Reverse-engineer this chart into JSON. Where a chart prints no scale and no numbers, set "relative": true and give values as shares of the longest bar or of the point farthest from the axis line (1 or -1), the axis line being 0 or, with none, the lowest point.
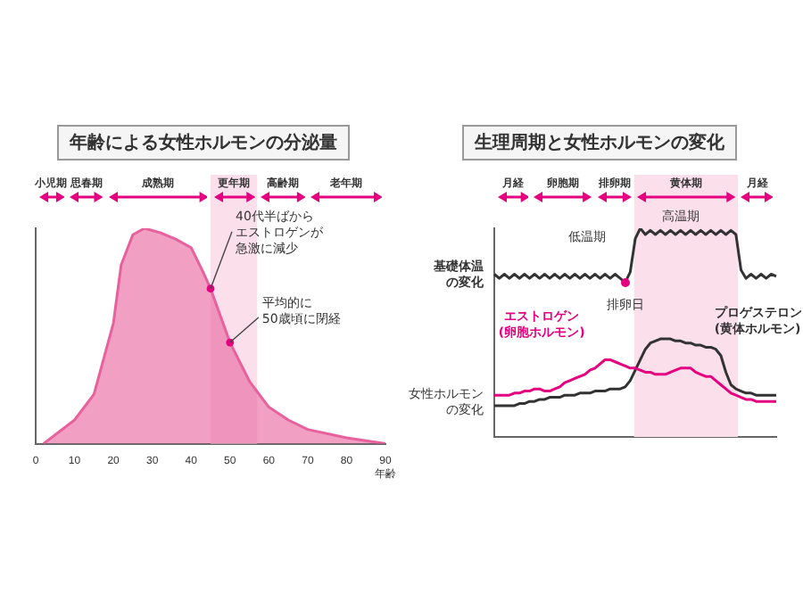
{
  "chart_data": [
    {
      "type": "area",
      "title": "年齢による女性ホルモンの分泌量",
      "xlabel": "年齢",
      "relative": true,
      "tick_labels": "x",
      "color": "#e8609c",
      "x": [
        2,
        10,
        15,
        20,
        22,
        25,
        28,
        32,
        36,
        40,
        43,
        45,
        50,
        55,
        60,
        65,
        70,
        80,
        90
      ],
      "values": [
        0,
        0.11,
        0.23,
        0.56,
        0.83,
        0.97,
        1,
        0.98,
        0.95,
        0.91,
        0.8,
        0.72,
        0.47,
        0.29,
        0.17,
        0.11,
        0.066,
        0.027,
        0
      ],
      "xlim": [
        0,
        90
      ],
      "xticks": [
        0,
        10,
        20,
        30,
        40,
        50,
        60,
        70,
        80,
        90
      ],
      "bands": [
        {
          "axis": "x",
          "from": 45,
          "to": 57,
          "label": "更年期",
          "color": "#fbe0ec"
        }
      ],
      "annotations": [
        "小児期",
        "思春期",
        "成熟期",
        "高齢期",
        "老年期",
        {
          "text": "40代半ばからエストロゲンが急激に減少",
          "x": 45,
          "y": 0.72
        },
        {
          "text": "平均的に50歳頃に閉経",
          "x": 50,
          "y": 0.47
        }
      ]
    },
    {
      "type": "line",
      "title": "生理周期と女性ホルモンの変化",
      "relative": true,
      "tick_labels": false,
      "categories": [
        null,
        null,
        null,
        null,
        null,
        null,
        null,
        null,
        null,
        null,
        null,
        null,
        null,
        null,
        null,
        null,
        null,
        null,
        null,
        null,
        null,
        null,
        null,
        null,
        null,
        null,
        null,
        null,
        null,
        null,
        null,
        null,
        null,
        null,
        null,
        null,
        null,
        null,
        null,
        null,
        null,
        null,
        null,
        null,
        null,
        null,
        null,
        null,
        null,
        null,
        null,
        null,
        null,
        null,
        null,
        null,
        null
      ],
      "series": [
        {
          "name": "基礎体温の変化",
          "color": "#333333",
          "values": [
            0.78,
            0.76,
            0.78,
            0.76,
            0.78,
            0.76,
            0.78,
            0.76,
            0.78,
            0.76,
            0.78,
            0.76,
            0.78,
            0.76,
            0.78,
            0.76,
            0.78,
            0.76,
            0.78,
            0.76,
            0.78,
            0.76,
            0.78,
            0.76,
            0.78,
            0.76,
            0.74,
            0.79,
            0.95,
            1,
            0.97,
            0.99,
            0.97,
            0.99,
            0.97,
            0.99,
            0.97,
            0.99,
            0.97,
            0.99,
            0.97,
            0.99,
            0.97,
            0.99,
            0.97,
            0.99,
            0.97,
            0.99,
            0.97,
            0.8,
            0.76,
            0.78,
            0.76,
            0.78,
            0.76,
            0.78,
            0.77
          ]
        },
        {
          "name": "エストロゲン(卵胞ホルモン)",
          "color": "#e4007f",
          "values": [
            0.2,
            0.2,
            0.2,
            0.2,
            0.21,
            0.21,
            0.22,
            0.22,
            0.23,
            0.23,
            0.22,
            0.22,
            0.23,
            0.24,
            0.26,
            0.27,
            0.28,
            0.29,
            0.3,
            0.32,
            0.33,
            0.35,
            0.37,
            0.37,
            0.36,
            0.35,
            0.34,
            0.33,
            0.33,
            0.32,
            0.31,
            0.31,
            0.3,
            0.3,
            0.3,
            0.31,
            0.32,
            0.33,
            0.33,
            0.33,
            0.31,
            0.3,
            0.29,
            0.29,
            0.27,
            0.25,
            0.23,
            0.21,
            0.2,
            0.19,
            0.18,
            0.18,
            0.17,
            0.17,
            0.17,
            0.17,
            0.17
          ]
        },
        {
          "name": "プロゲステロン(黄体ホルモン)",
          "color": "#333333",
          "values": [
            0.15,
            0.15,
            0.15,
            0.15,
            0.15,
            0.16,
            0.16,
            0.17,
            0.17,
            0.18,
            0.18,
            0.19,
            0.19,
            0.19,
            0.2,
            0.2,
            0.2,
            0.21,
            0.21,
            0.21,
            0.22,
            0.22,
            0.22,
            0.23,
            0.23,
            0.23,
            0.24,
            0.27,
            0.32,
            0.37,
            0.42,
            0.45,
            0.46,
            0.47,
            0.47,
            0.47,
            0.46,
            0.46,
            0.45,
            0.45,
            0.44,
            0.44,
            0.43,
            0.43,
            0.42,
            0.39,
            0.31,
            0.25,
            0.23,
            0.22,
            0.21,
            0.21,
            0.2,
            0.2,
            0.2,
            0.2,
            0.2
          ]
        }
      ],
      "annotations": [
        "月経",
        "卵胞期",
        "排卵期",
        "黄体期",
        "月経",
        "低温期",
        "高温期",
        "排卵日",
        "女性ホルモンの変化"
      ]
    }
  ]
}
